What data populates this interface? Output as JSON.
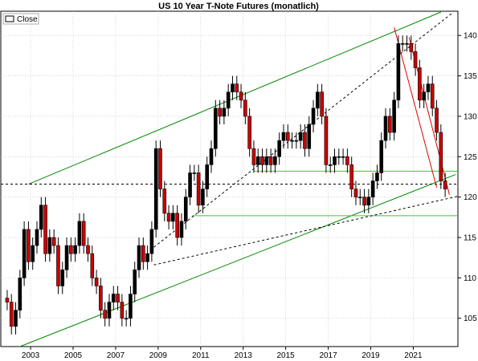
{
  "chart_data": {
    "type": "candlestick",
    "title": "US 10 Year T-Note Futures (monatlich)",
    "legend": {
      "label": "Close",
      "placement": "top-left"
    },
    "grid": true,
    "x_ticks": [
      "2003",
      "2005",
      "2007",
      "2009",
      "2011",
      "2013",
      "2015",
      "2017",
      "2019",
      "2021"
    ],
    "y_ticks": [
      105,
      110,
      115,
      120,
      125,
      130,
      135,
      140
    ],
    "xlim": [
      2001.6,
      2023.1
    ],
    "ylim": [
      101.5,
      143.0
    ],
    "colors": {
      "up": "#000000",
      "down": "#cc0000",
      "support": "#33cc33",
      "channel": "#008800",
      "downtrend": "#dd0000",
      "dashed": "#000000"
    },
    "close": [
      [
        2001.9,
        107
      ],
      [
        2002.1,
        104
      ],
      [
        2002.3,
        106
      ],
      [
        2002.5,
        110
      ],
      [
        2002.7,
        116
      ],
      [
        2002.9,
        112
      ],
      [
        2003.1,
        114
      ],
      [
        2003.3,
        116
      ],
      [
        2003.5,
        119
      ],
      [
        2003.7,
        113
      ],
      [
        2003.9,
        115
      ],
      [
        2004.1,
        114
      ],
      [
        2004.3,
        109
      ],
      [
        2004.5,
        111
      ],
      [
        2004.7,
        114
      ],
      [
        2004.9,
        113
      ],
      [
        2005.1,
        114
      ],
      [
        2005.3,
        117
      ],
      [
        2005.5,
        114
      ],
      [
        2005.7,
        113
      ],
      [
        2005.9,
        110
      ],
      [
        2006.1,
        109
      ],
      [
        2006.3,
        106
      ],
      [
        2006.5,
        105
      ],
      [
        2006.7,
        107
      ],
      [
        2006.9,
        108
      ],
      [
        2007.1,
        107
      ],
      [
        2007.3,
        105
      ],
      [
        2007.5,
        105
      ],
      [
        2007.7,
        108
      ],
      [
        2007.9,
        111
      ],
      [
        2008.1,
        114
      ],
      [
        2008.3,
        112
      ],
      [
        2008.5,
        113
      ],
      [
        2008.7,
        116
      ],
      [
        2008.9,
        126
      ],
      [
        2009.1,
        121
      ],
      [
        2009.3,
        118
      ],
      [
        2009.5,
        117
      ],
      [
        2009.7,
        118
      ],
      [
        2009.9,
        115
      ],
      [
        2010.1,
        117
      ],
      [
        2010.3,
        120
      ],
      [
        2010.5,
        123
      ],
      [
        2010.7,
        123
      ],
      [
        2010.9,
        119
      ],
      [
        2011.1,
        121
      ],
      [
        2011.3,
        124
      ],
      [
        2011.5,
        126
      ],
      [
        2011.7,
        131
      ],
      [
        2011.9,
        130
      ],
      [
        2012.1,
        131
      ],
      [
        2012.3,
        133
      ],
      [
        2012.5,
        134
      ],
      [
        2012.7,
        133
      ],
      [
        2012.9,
        132
      ],
      [
        2013.1,
        130
      ],
      [
        2013.3,
        126
      ],
      [
        2013.5,
        124
      ],
      [
        2013.7,
        125
      ],
      [
        2013.9,
        124
      ],
      [
        2014.1,
        125
      ],
      [
        2014.3,
        124
      ],
      [
        2014.5,
        125
      ],
      [
        2014.7,
        127
      ],
      [
        2014.9,
        128
      ],
      [
        2015.1,
        127
      ],
      [
        2015.3,
        127
      ],
      [
        2015.5,
        127
      ],
      [
        2015.7,
        128
      ],
      [
        2015.9,
        126
      ],
      [
        2016.1,
        129
      ],
      [
        2016.3,
        131
      ],
      [
        2016.5,
        133
      ],
      [
        2016.7,
        130
      ],
      [
        2016.9,
        124
      ],
      [
        2017.1,
        124
      ],
      [
        2017.3,
        125
      ],
      [
        2017.5,
        125
      ],
      [
        2017.7,
        125
      ],
      [
        2017.9,
        124
      ],
      [
        2018.1,
        121
      ],
      [
        2018.3,
        120
      ],
      [
        2018.5,
        120
      ],
      [
        2018.7,
        119
      ],
      [
        2018.9,
        120
      ],
      [
        2019.1,
        122
      ],
      [
        2019.3,
        123
      ],
      [
        2019.5,
        127
      ],
      [
        2019.7,
        130
      ],
      [
        2019.9,
        128
      ],
      [
        2020.1,
        132
      ],
      [
        2020.3,
        139
      ],
      [
        2020.5,
        139
      ],
      [
        2020.7,
        139
      ],
      [
        2020.9,
        138
      ],
      [
        2021.1,
        136
      ],
      [
        2021.3,
        132
      ],
      [
        2021.5,
        133
      ],
      [
        2021.7,
        134
      ],
      [
        2021.9,
        131
      ],
      [
        2022.1,
        128
      ],
      [
        2022.3,
        122
      ],
      [
        2022.5,
        121
      ]
    ],
    "annotations": {
      "support_lines": [
        {
          "from": [
            2013.5,
            123.2
          ],
          "to": [
            2023.1,
            123.2
          ]
        },
        {
          "from": [
            2010.6,
            117.7
          ],
          "to": [
            2023.1,
            117.7
          ]
        }
      ],
      "channel_lines": [
        {
          "from": [
            2002.9,
            121.6
          ],
          "to": [
            2022.3,
            142.9
          ]
        },
        {
          "from": [
            2002.5,
            101.5
          ],
          "to": [
            2023.0,
            122.8
          ]
        }
      ],
      "downtrend_lines": [
        {
          "from": [
            2020.1,
            141.0
          ],
          "to": [
            2022.1,
            121.2
          ]
        },
        {
          "from": [
            2020.8,
            139.8
          ],
          "to": [
            2022.7,
            120.3
          ]
        }
      ],
      "dashed_lines": [
        {
          "from": [
            2001.6,
            121.6
          ],
          "to": [
            2023.1,
            121.6
          ]
        },
        {
          "from": [
            2008.8,
            113.8
          ],
          "to": [
            2022.8,
            142.7
          ]
        },
        {
          "from": [
            2008.8,
            111.6
          ],
          "to": [
            2023.1,
            120.1
          ]
        }
      ]
    }
  }
}
